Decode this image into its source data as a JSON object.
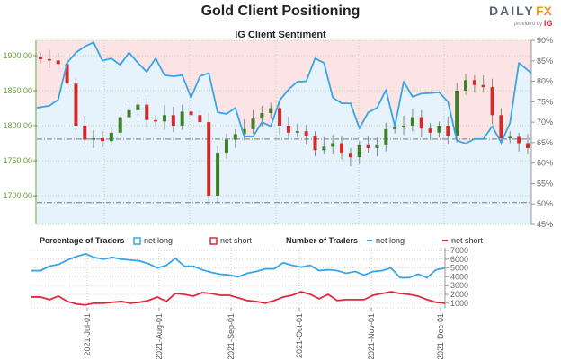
{
  "header": {
    "title": "Gold Client Positioning",
    "subtitle": "IG Client Sentiment"
  },
  "logo": {
    "brand_left": "DAILY",
    "brand_right": "FX",
    "provided_by": "provided by",
    "ig": "IG"
  },
  "colors": {
    "net_long": "#3aa4e8",
    "net_short": "#e0283c",
    "bull": "#3f7f2a",
    "bear": "#d42a2a",
    "pink_bg": "#fce4e4",
    "blue_bg": "#e6f3fc",
    "price_axis": "#6a9a3a"
  },
  "chart_data": [
    {
      "type": "line",
      "title": "IG Client Sentiment",
      "price_axis": {
        "ticks": [
          "1900.00",
          "1850.00",
          "1800.00",
          "1750.00",
          "1700.00"
        ],
        "values": [
          1900,
          1850,
          1800,
          1750,
          1700
        ]
      },
      "pct_axis": {
        "ticks": [
          "90%",
          "85%",
          "80%",
          "75%",
          "70%",
          "65%",
          "60%",
          "55%",
          "50%",
          "45%"
        ],
        "values": [
          90,
          85,
          80,
          75,
          70,
          65,
          60,
          55,
          50,
          45
        ],
        "range": [
          45,
          90
        ]
      },
      "reference_lines": [
        1781,
        1690
      ],
      "price_close": [
        1895,
        1893,
        1888,
        1860,
        1800,
        1780,
        1782,
        1778,
        1790,
        1812,
        1822,
        1830,
        1808,
        1806,
        1815,
        1800,
        1820,
        1815,
        1805,
        1700,
        1760,
        1780,
        1788,
        1795,
        1810,
        1818,
        1825,
        1800,
        1790,
        1792,
        1785,
        1765,
        1770,
        1775,
        1760,
        1755,
        1772,
        1768,
        1772,
        1795,
        1798,
        1800,
        1812,
        1796,
        1790,
        1800,
        1785,
        1850,
        1865,
        1858,
        1855,
        1815,
        1782,
        1784,
        1775,
        1768
      ],
      "net_long_pct": [
        73.5,
        74,
        75.5,
        84.5,
        87,
        88.5,
        89.5,
        85,
        85.6,
        84,
        87,
        84.5,
        82.3,
        85.6,
        81.5,
        81.2,
        81.5,
        76,
        81.2,
        82,
        72.4,
        72,
        73.5,
        66.5,
        66.5,
        70,
        69,
        75.3,
        78,
        79.9,
        80,
        85.6,
        84.5,
        76,
        74.6,
        74.6,
        68.5,
        72.4,
        73.5,
        77.9,
        69,
        79.9,
        76.2,
        77,
        77.1,
        77.3,
        75,
        65.5,
        64.8,
        65.9,
        65.9,
        69,
        65,
        69.8,
        84.5,
        82
      ]
    },
    {
      "type": "line",
      "legend": {
        "pct_label": "Percentage of Traders",
        "pct_long": "net long",
        "pct_short": "net short",
        "num_label": "Number of Traders",
        "num_long": "net long",
        "num_short": "net short"
      },
      "y_axis": {
        "ticks": [
          "7000",
          "6000",
          "5000",
          "4000",
          "3000",
          "2000",
          "1000"
        ],
        "values": [
          7000,
          6000,
          5000,
          4000,
          3000,
          2000,
          1000
        ]
      },
      "x_ticks": [
        "2021-Jul-01",
        "2021-Aug-01",
        "2021-Sep-01",
        "2021-Oct-01",
        "2021-Nov-01",
        "2021-Dec-01"
      ],
      "series": [
        {
          "name": "net long",
          "values": [
            4700,
            4700,
            5200,
            5400,
            5900,
            6300,
            6600,
            6200,
            6000,
            6200,
            6000,
            5900,
            5800,
            5500,
            5000,
            5300,
            6100,
            5200,
            5200,
            4800,
            4500,
            4300,
            4200,
            4000,
            4400,
            4600,
            4900,
            4900,
            5600,
            5300,
            5100,
            5300,
            4700,
            4800,
            4700,
            4400,
            4600,
            4200,
            4600,
            4700,
            5000,
            3900,
            3900,
            4300,
            3900,
            4800,
            5000
          ]
        },
        {
          "name": "net short",
          "values": [
            1700,
            1700,
            1400,
            1800,
            1200,
            900,
            800,
            1000,
            1000,
            1100,
            1200,
            1000,
            1100,
            1300,
            1700,
            1200,
            2100,
            2000,
            1800,
            2200,
            2100,
            1900,
            1900,
            1600,
            1300,
            1200,
            1000,
            1300,
            1700,
            1900,
            2300,
            2000,
            1500,
            2000,
            1300,
            1400,
            1400,
            1400,
            1900,
            2100,
            2300,
            2100,
            2000,
            1800,
            1400,
            1100,
            1000
          ]
        }
      ]
    }
  ]
}
